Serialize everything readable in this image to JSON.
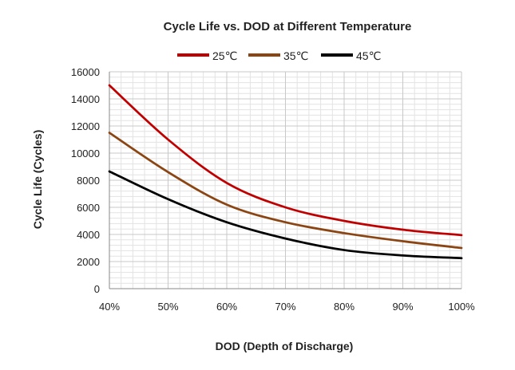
{
  "chart_data": {
    "type": "line",
    "title": "Cycle Life vs. DOD at Different Temperature",
    "xlabel": "DOD (Depth of Discharge)",
    "ylabel": "Cycle Life (Cycles)",
    "x": [
      40,
      50,
      60,
      70,
      80,
      90,
      100
    ],
    "x_tick_labels": [
      "40%",
      "50%",
      "60%",
      "70%",
      "80%",
      "90%",
      "100%"
    ],
    "xlim": [
      40,
      100
    ],
    "ylim": [
      0,
      16000
    ],
    "y_ticks": [
      0,
      2000,
      4000,
      6000,
      8000,
      10000,
      12000,
      14000,
      16000
    ],
    "y_tick_labels": [
      "0",
      "2000",
      "4000",
      "6000",
      "8000",
      "10000",
      "12000",
      "14000",
      "16000"
    ],
    "grid": true,
    "legend_position": "top",
    "series": [
      {
        "name": "25℃",
        "color": "#c00000",
        "values": [
          15000,
          11000,
          7800,
          6000,
          5000,
          4350,
          3950
        ]
      },
      {
        "name": "35℃",
        "color": "#8b4513",
        "values": [
          11500,
          8600,
          6200,
          4900,
          4100,
          3500,
          3000
        ]
      },
      {
        "name": "45℃",
        "color": "#000000",
        "values": [
          8650,
          6600,
          4900,
          3700,
          2850,
          2450,
          2250
        ]
      }
    ]
  }
}
